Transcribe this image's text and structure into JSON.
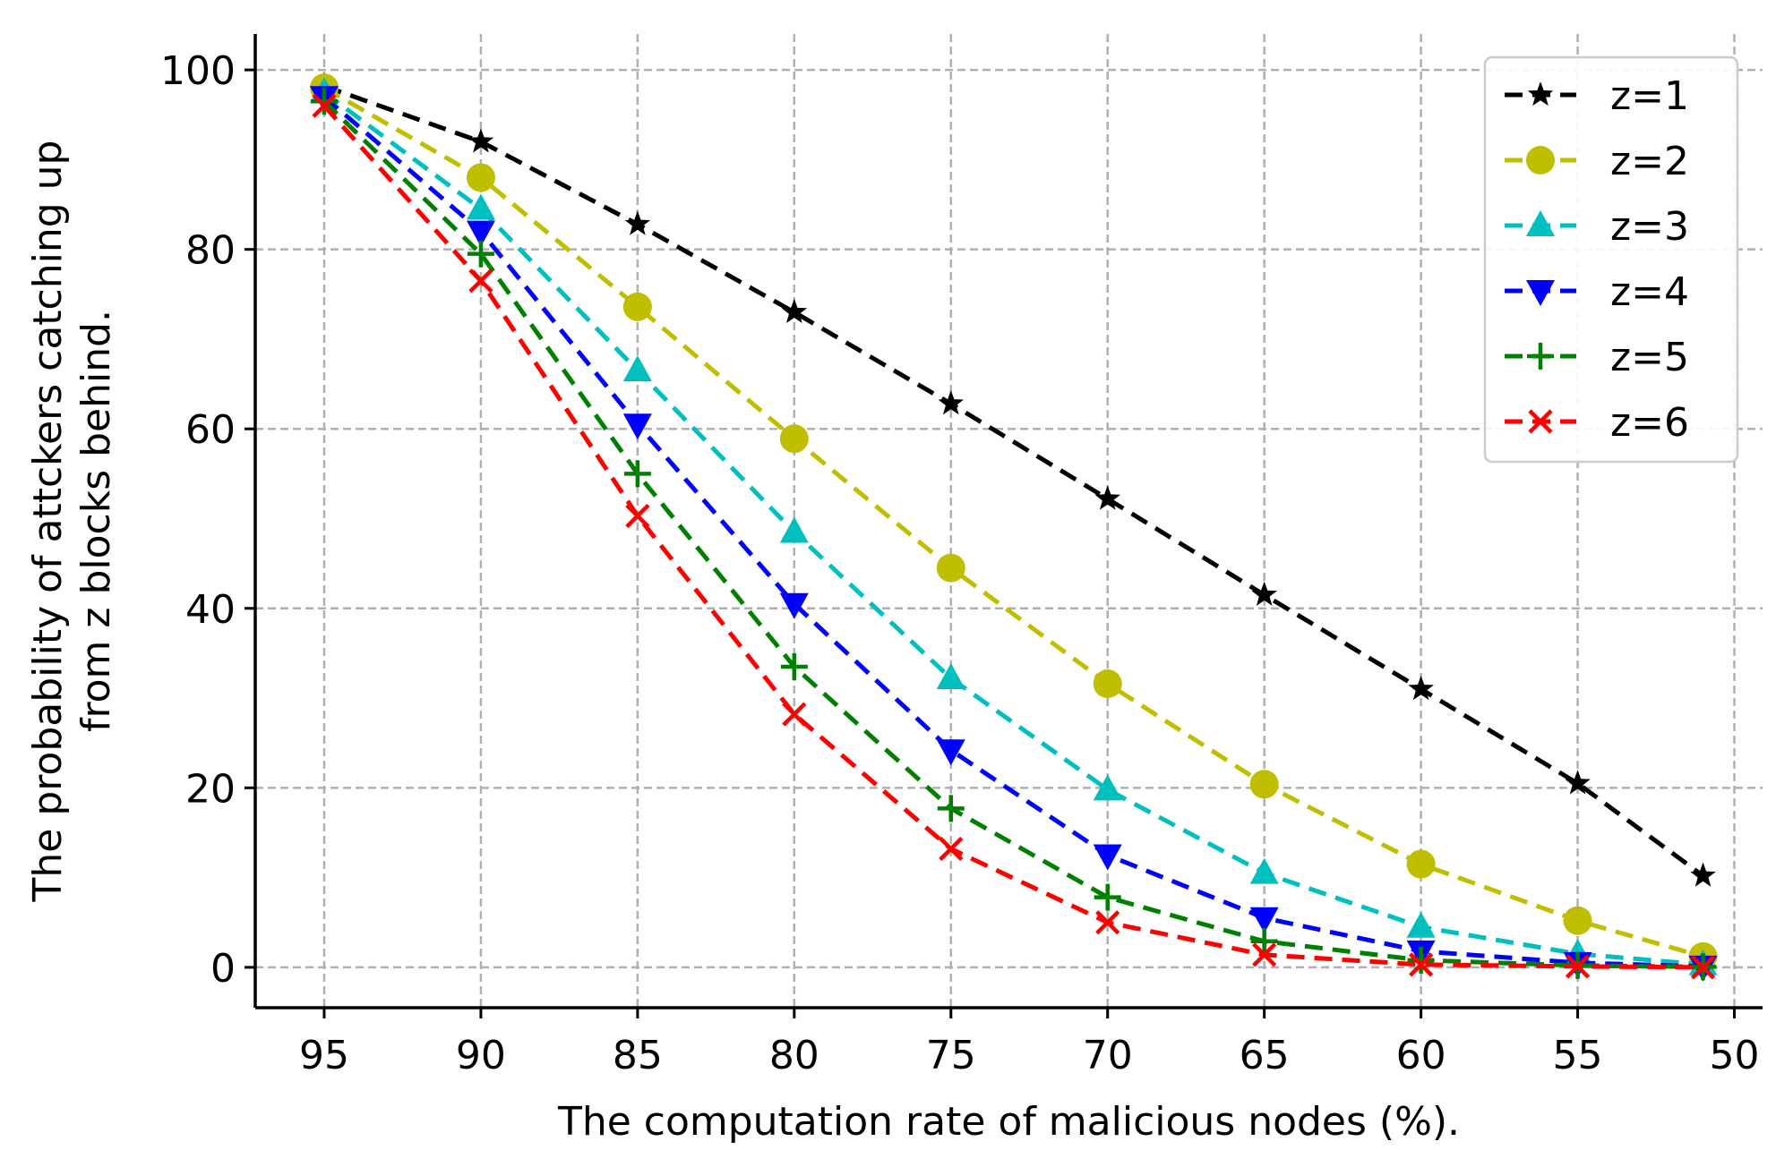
{
  "chart_data": {
    "type": "line",
    "title": "",
    "xlabel": "The computation rate of malicious nodes (%).",
    "ylabel_lines": [
      "The probability of attckers catching up",
      "from z blocks behind."
    ],
    "x": [
      95,
      90,
      85,
      80,
      75,
      70,
      65,
      60,
      55,
      51
    ],
    "xlim": [
      97.2,
      49.1
    ],
    "ylim": [
      -4.5,
      104
    ],
    "x_ticks": [
      95,
      90,
      85,
      80,
      75,
      70,
      65,
      60,
      55,
      50
    ],
    "x_tick_labels": [
      "95",
      "90",
      "85",
      "80",
      "75",
      "70",
      "65",
      "60",
      "55",
      "50"
    ],
    "y_ticks": [
      0,
      20,
      40,
      60,
      80,
      100
    ],
    "y_tick_labels": [
      "0",
      "20",
      "40",
      "60",
      "80",
      "100"
    ],
    "grid": true,
    "legend_position": "top-right",
    "series": [
      {
        "name": "z=1",
        "color": "#000000",
        "marker": "star",
        "values": [
          98.2,
          92.0,
          82.8,
          73.0,
          62.8,
          52.2,
          41.5,
          31.0,
          20.5,
          10.2
        ]
      },
      {
        "name": "z=2",
        "color": "#bfbf00",
        "marker": "circle",
        "values": [
          98.0,
          88.0,
          73.6,
          58.9,
          44.5,
          31.6,
          20.4,
          11.5,
          5.2,
          1.2
        ]
      },
      {
        "name": "z=3",
        "color": "#00bfbf",
        "marker": "triangle-up",
        "values": [
          97.5,
          84.5,
          66.5,
          48.5,
          32.2,
          19.8,
          10.5,
          4.5,
          1.5,
          0.3
        ]
      },
      {
        "name": "z=4",
        "color": "#0000ff",
        "marker": "triangle-down",
        "values": [
          97.0,
          82.0,
          60.5,
          40.5,
          24.2,
          12.5,
          5.5,
          1.8,
          0.5,
          0.1
        ]
      },
      {
        "name": "z=5",
        "color": "#008000",
        "marker": "plus",
        "values": [
          96.5,
          79.5,
          55.0,
          33.5,
          17.7,
          7.8,
          2.9,
          0.8,
          0.2,
          0.05
        ]
      },
      {
        "name": "z=6",
        "color": "#ff0000",
        "marker": "x",
        "values": [
          96.0,
          76.5,
          50.3,
          28.2,
          13.2,
          5.0,
          1.4,
          0.3,
          0.1,
          0.0
        ]
      }
    ]
  }
}
